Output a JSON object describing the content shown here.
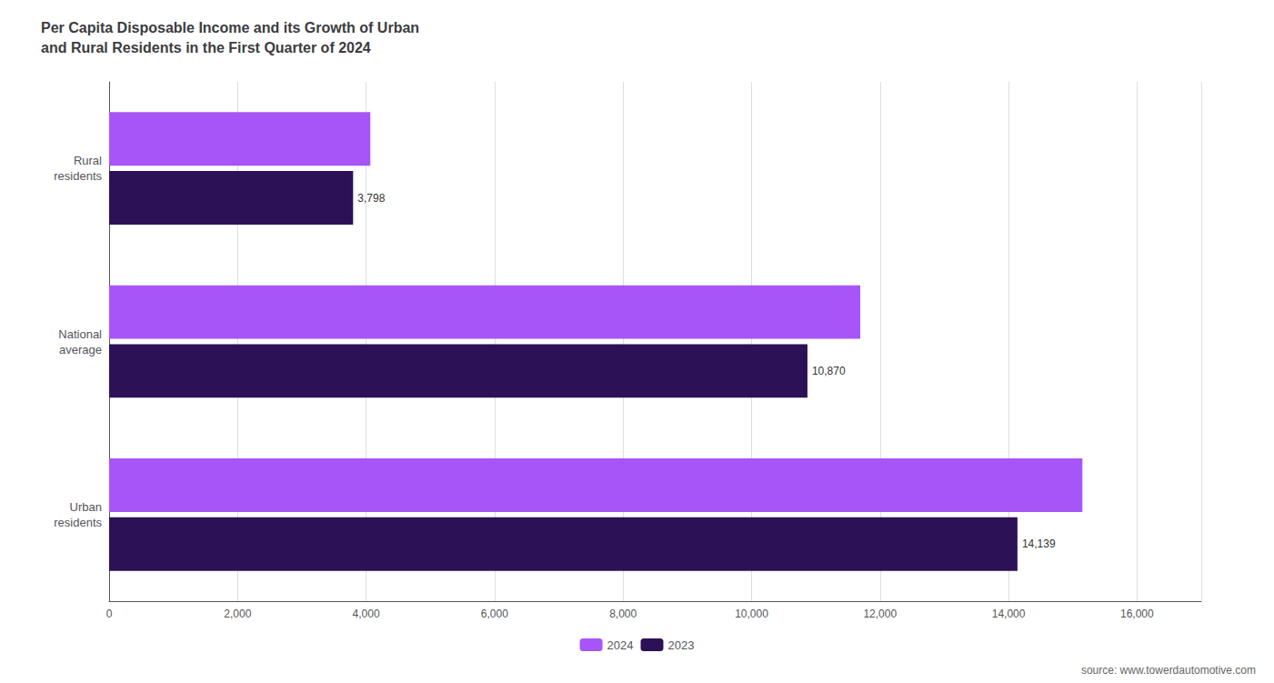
{
  "chart_data": {
    "type": "bar",
    "orientation": "horizontal",
    "title": "Per Capita Disposable Income and its Growth of Urban\nand Rural Residents in the First Quarter of 2024",
    "categories": [
      "Urban\nresidents",
      "National\naverage",
      "Rural\nresidents"
    ],
    "series": [
      {
        "name": "2024",
        "color": "#a855f7",
        "values": [
          15150,
          11692,
          4066
        ]
      },
      {
        "name": "2023",
        "color": "#2d1157",
        "values": [
          14139,
          10870,
          3798
        ],
        "data_labels": true,
        "value_labels": [
          "14,139",
          "10,870",
          "3,798"
        ]
      }
    ],
    "xlim": [
      0,
      17000
    ],
    "xticks": [
      0,
      {
        "value": 2000,
        "label": "2,000"
      },
      {
        "value": 4000,
        "label": "4,000"
      },
      {
        "value": 6000,
        "label": "6,000"
      },
      {
        "value": 8000,
        "label": "8,000"
      },
      {
        "value": 10000,
        "label": "10,000"
      },
      {
        "value": 12000,
        "label": "12,000"
      },
      {
        "value": 14000,
        "label": "14,000"
      },
      {
        "value": 16000,
        "label": "16,000"
      }
    ],
    "grid": true,
    "legend": "bottom",
    "source": "source: www.towerdautomotive.com"
  }
}
